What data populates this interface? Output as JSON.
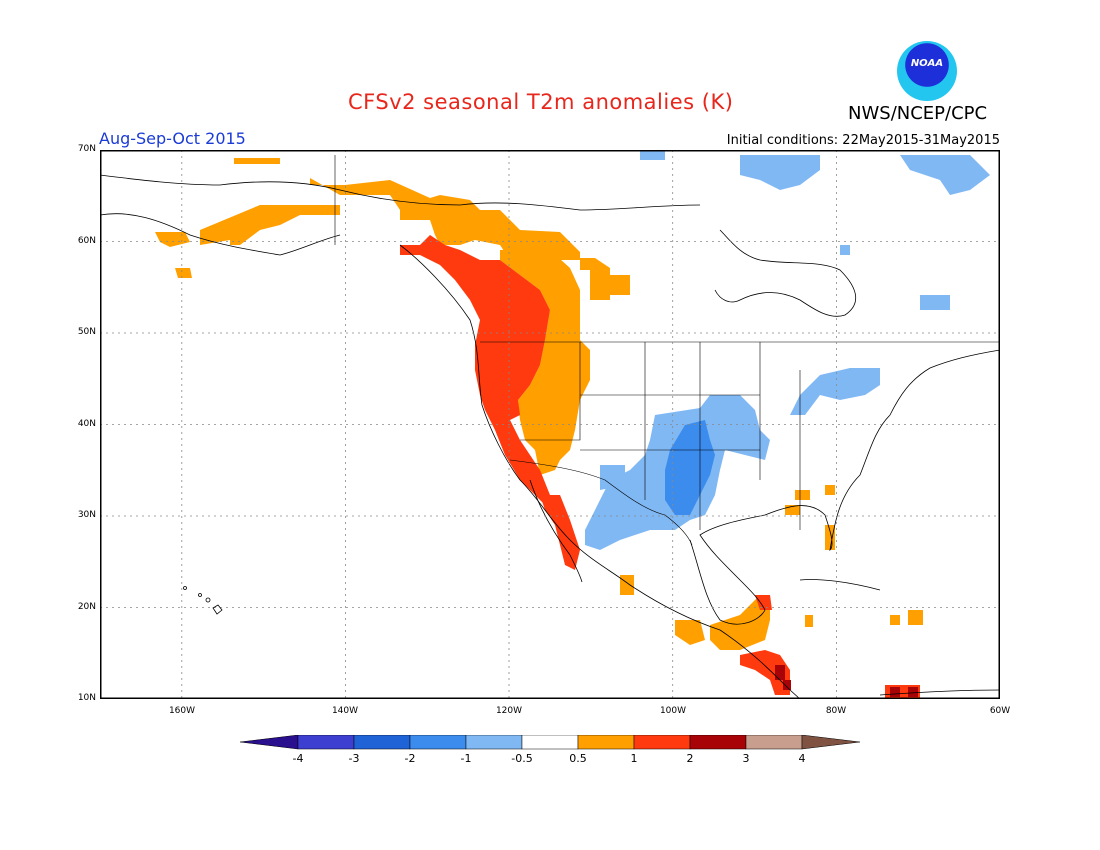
{
  "header": {
    "title": "CFSv2 seasonal T2m anomalies (K)",
    "org": "NWS/NCEP/CPC",
    "logo_text": "NOAA",
    "period": "Aug-Sep-Oct 2015",
    "initial_conditions": "Initial conditions: 22May2015-31May2015"
  },
  "map": {
    "lat_labels": [
      "70N",
      "60N",
      "50N",
      "40N",
      "30N",
      "20N",
      "10N"
    ],
    "lon_labels": [
      "160W",
      "140W",
      "120W",
      "100W",
      "80W",
      "60W"
    ],
    "lat_range": [
      10,
      70
    ],
    "lon_range": [
      -170,
      -60
    ]
  },
  "colorbar": {
    "labels": [
      "-4",
      "-3",
      "-2",
      "-1",
      "-0.5",
      "0.5",
      "1",
      "2",
      "3",
      "4"
    ],
    "colors": [
      "#2a0f8f",
      "#3c3fcf",
      "#1f63d6",
      "#3b8ced",
      "#80b8f4",
      "#ffffff",
      "#ff9f00",
      "#ff3a0e",
      "#a80306",
      "#c89e8e",
      "#7f5242"
    ]
  },
  "anomaly_regions": [
    {
      "class": "warm-0.5-1",
      "color": "#ff9f00",
      "areas": [
        "Alaska",
        "Yukon",
        "British Columbia interior",
        "Alberta",
        "Great Basin",
        "Yucatan",
        "Central America"
      ]
    },
    {
      "class": "warm-1-2",
      "color": "#ff3a0e",
      "areas": [
        "Pacific Northwest coast",
        "California",
        "Baja California",
        "Central America"
      ]
    },
    {
      "class": "warm-2-3",
      "color": "#a80306",
      "areas": [
        "Central America",
        "Venezuela coast"
      ]
    },
    {
      "class": "cool-0.5-1",
      "color": "#80b8f4",
      "areas": [
        "Southern Plains",
        "Texas",
        "Great Lakes",
        "Labrador",
        "Baffin Bay"
      ]
    },
    {
      "class": "cool-1-2",
      "color": "#3b8ced",
      "areas": [
        "Oklahoma",
        "Kansas",
        "Texas"
      ]
    }
  ]
}
